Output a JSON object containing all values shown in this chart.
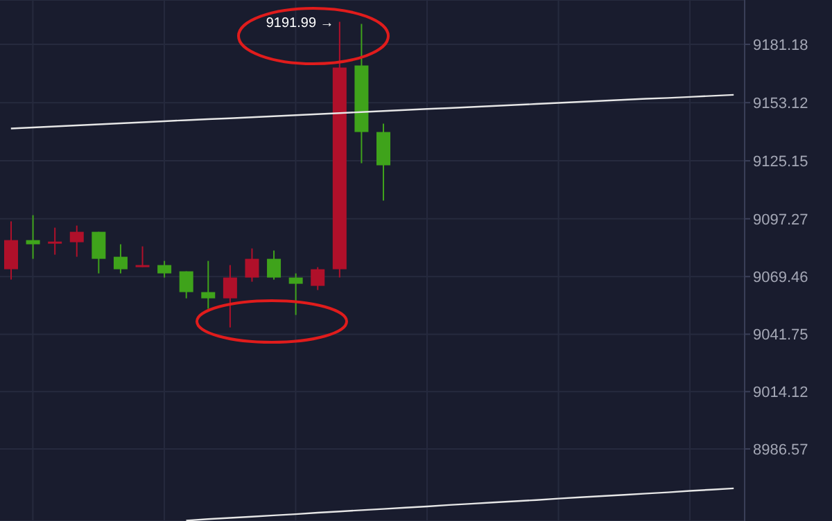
{
  "chart_data": {
    "type": "candlestick",
    "categories": [
      null,
      null,
      null,
      null,
      null,
      null,
      null,
      null,
      null,
      null,
      null,
      null,
      null,
      null,
      null,
      null,
      null,
      null,
      null,
      null,
      null,
      null,
      null,
      null,
      null,
      null,
      null,
      null,
      null,
      null,
      null,
      null,
      null,
      null
    ],
    "ohlc": [
      [
        9073,
        9096,
        9068,
        9087
      ],
      [
        9087,
        9099,
        9078,
        9085
      ],
      [
        9086,
        9093,
        9080,
        9086.3
      ],
      [
        9086,
        9094,
        9079,
        9091
      ],
      [
        9091,
        9091,
        9071,
        9078
      ],
      [
        9079,
        9085,
        9071,
        9073
      ],
      [
        9074,
        9084,
        9074,
        9075
      ],
      [
        9075,
        9077,
        9069,
        9071
      ],
      [
        9072,
        9072,
        9059,
        9062
      ],
      [
        9062,
        9077,
        9054,
        9059
      ],
      [
        9059,
        9075,
        9045,
        9069
      ],
      [
        9069,
        9083,
        9067,
        9078
      ],
      [
        9078,
        9082,
        9068,
        9069
      ],
      [
        9069,
        9071,
        9051,
        9066
      ],
      [
        9065,
        9074,
        9063,
        9073
      ],
      [
        9073,
        9191.99,
        9069,
        9170
      ],
      [
        9171,
        9191,
        9124,
        9139
      ],
      [
        9139,
        9143,
        9106,
        9123
      ],
      null,
      null,
      null,
      null,
      null,
      null,
      null,
      null,
      null,
      null,
      null,
      null,
      null,
      null,
      null,
      null
    ],
    "colors": [
      "#b0102a",
      "#3fa31b",
      "#b0102a",
      "#b0102a",
      "#3fa31b",
      "#3fa31b",
      "#b0102a",
      "#3fa31b",
      "#3fa31b",
      "#3fa31b",
      "#b0102a",
      "#b0102a",
      "#3fa31b",
      "#3fa31b",
      "#b0102a",
      "#b0102a",
      "#3fa31b",
      "#3fa31b",
      null,
      null,
      null,
      null,
      null,
      null,
      null,
      null,
      null,
      null,
      null,
      null,
      null,
      null,
      null,
      null
    ],
    "series": [
      {
        "type": "line",
        "color": "#e6e6e6",
        "values": [
          9140.7,
          9141.2,
          9141.7,
          9142.2,
          9142.7,
          9143.2,
          9143.7,
          9144.2,
          9144.7,
          9145.2,
          9145.6,
          9146.1,
          9146.6,
          9147.1,
          9147.6,
          9148.1,
          9148.6,
          9149.1,
          9149.6,
          9150.1,
          9150.5,
          9151.0,
          9151.5,
          9152.0,
          9152.5,
          9153.0,
          9153.5,
          9154.0,
          9154.5,
          9155.0,
          9155.4,
          9155.9,
          9156.4,
          9156.9
        ]
      },
      {
        "type": "line",
        "color": "#e6e6e6",
        "values": [
          null,
          null,
          null,
          null,
          null,
          null,
          null,
          null,
          8952.1,
          8952.8,
          8953.4,
          8954.0,
          8954.6,
          8955.2,
          8955.9,
          8956.5,
          8957.1,
          8957.7,
          8958.3,
          8958.9,
          8959.6,
          8960.2,
          8960.8,
          8961.4,
          8962.0,
          8962.7,
          8963.3,
          8963.9,
          8964.5,
          8965.1,
          8965.7,
          8966.4,
          8967.0,
          8967.6
        ]
      }
    ],
    "ylim": [
      8951.9,
      9202.5
    ],
    "yticks": [
      8986.57,
      9014.12,
      9041.75,
      9069.46,
      9097.27,
      9125.15,
      9153.12,
      9181.18
    ],
    "grid": true,
    "tick_labels": "y",
    "annotations": [
      "9191.99 →"
    ]
  }
}
